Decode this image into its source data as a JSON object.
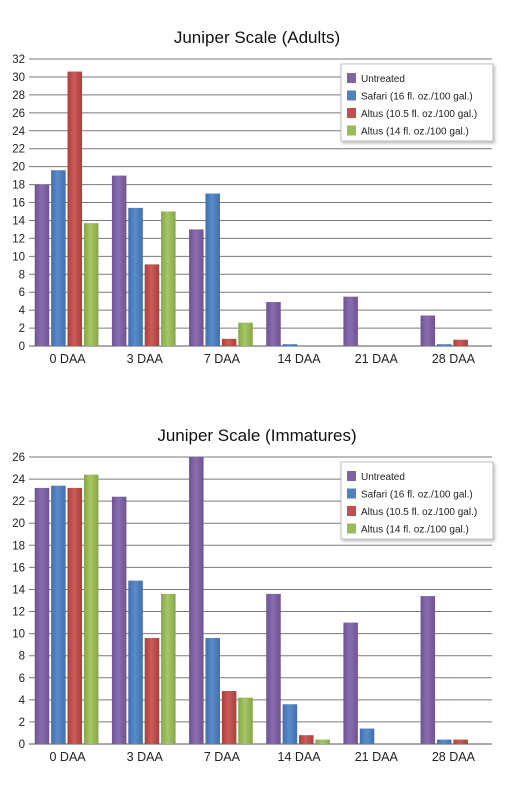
{
  "chart_data": [
    {
      "type": "bar",
      "title": "Juniper Scale (Adults)",
      "xlabel": "",
      "ylabel": "",
      "categories": [
        "0 DAA",
        "3 DAA",
        "7 DAA",
        "14 DAA",
        "21 DAA",
        "28 DAA"
      ],
      "yticks": [
        0,
        2,
        4,
        6,
        8,
        10,
        12,
        14,
        16,
        18,
        20,
        22,
        24,
        26,
        28,
        30,
        32
      ],
      "ylim": [
        0,
        32
      ],
      "grid": true,
      "legend_position": "top-right",
      "series": [
        {
          "name": "Untreated",
          "color": "#8064A2",
          "values": [
            18.0,
            19.0,
            13.0,
            4.9,
            5.5,
            3.4
          ]
        },
        {
          "name": "Safari (16 fl. oz./100 gal.)",
          "color": "#4F81BD",
          "values": [
            19.6,
            15.4,
            17.0,
            0.2,
            0,
            0.2
          ]
        },
        {
          "name": "Altus (10.5 fl. oz./100 gal.)",
          "color": "#C0504D",
          "values": [
            30.6,
            9.1,
            0.8,
            0,
            0,
            0.7
          ]
        },
        {
          "name": "Altus (14 fl. oz./100 gal.)",
          "color": "#9BBB59",
          "values": [
            13.7,
            15.0,
            2.6,
            0,
            0,
            0
          ]
        }
      ]
    },
    {
      "type": "bar",
      "title": "Juniper Scale (Immatures)",
      "xlabel": "",
      "ylabel": "",
      "categories": [
        "0 DAA",
        "3 DAA",
        "7 DAA",
        "14 DAA",
        "21 DAA",
        "28 DAA"
      ],
      "yticks": [
        0,
        2,
        4,
        6,
        8,
        10,
        12,
        14,
        16,
        18,
        20,
        22,
        24,
        26
      ],
      "ylim": [
        0,
        26
      ],
      "grid": true,
      "legend_position": "top-right",
      "series": [
        {
          "name": "Untreated",
          "color": "#8064A2",
          "values": [
            23.2,
            22.4,
            26.0,
            13.6,
            11.0,
            13.4
          ]
        },
        {
          "name": "Safari (16 fl. oz./100 gal.)",
          "color": "#4F81BD",
          "values": [
            23.4,
            14.8,
            9.6,
            3.6,
            1.4,
            0.4
          ]
        },
        {
          "name": "Altus (10.5 fl. oz./100 gal.)",
          "color": "#C0504D",
          "values": [
            23.2,
            9.6,
            4.8,
            0.8,
            0,
            0.4
          ]
        },
        {
          "name": "Altus (14 fl. oz./100 gal.)",
          "color": "#9BBB59",
          "values": [
            24.4,
            13.6,
            4.2,
            0.4,
            0,
            0
          ]
        }
      ]
    }
  ]
}
